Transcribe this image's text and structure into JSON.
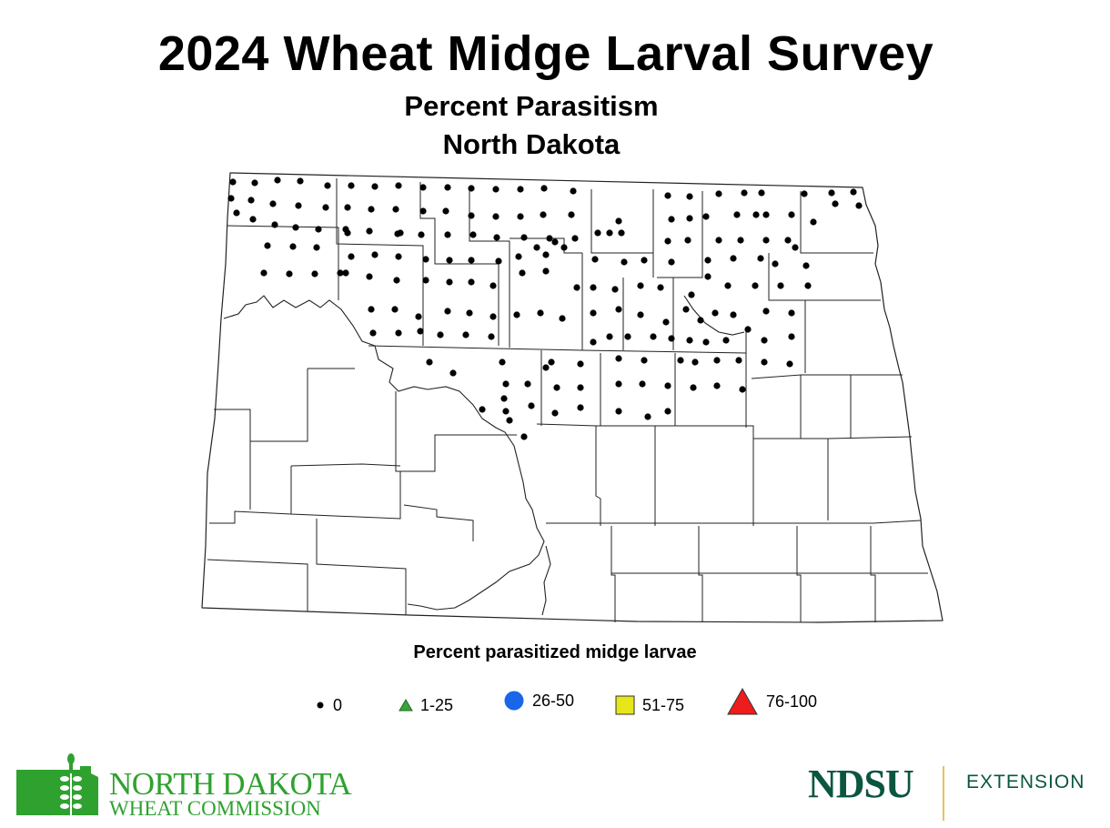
{
  "title": "2024 Wheat Midge Larval Survey",
  "subtitle_line1": "Percent Parasitism",
  "subtitle_line2": "North Dakota",
  "legend": {
    "title": "Percent parasitized midge larvae",
    "items": [
      {
        "label": "0",
        "symbol": "small-dot",
        "color": "#000000"
      },
      {
        "label": "1-25",
        "symbol": "triangle",
        "color": "#3aa33a"
      },
      {
        "label": "26-50",
        "symbol": "circle",
        "color": "#1a66e8"
      },
      {
        "label": "51-75",
        "symbol": "square",
        "color": "#e6e61a"
      },
      {
        "label": "76-100",
        "symbol": "triangle",
        "color": "#ee1c1c"
      }
    ]
  },
  "logos": {
    "ndwc_line1": "NORTH DAKOTA",
    "ndwc_line2": "WHEAT COMMISSION",
    "ndwc_color": "#2fa12f",
    "ndsu": "NDSU",
    "extension": "EXTENSION",
    "ndsu_color": "#0a5640"
  },
  "map_colors": {
    "boundary": "#222222",
    "fill": "#ffffff",
    "survey_point": "#000000"
  }
}
